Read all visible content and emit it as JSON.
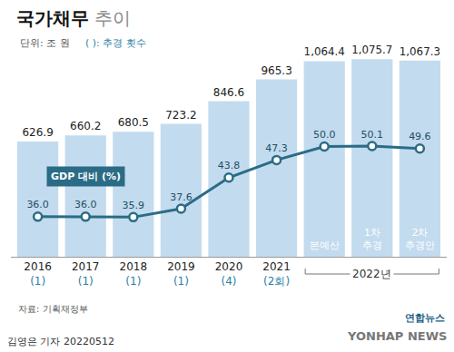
{
  "chart_data": {
    "type": "bar",
    "title": "국가채무 추이",
    "unit": "단위: 조 원",
    "note": "( ): 추경 횟수",
    "categories": [
      "2016",
      "2017",
      "2018",
      "2019",
      "2020",
      "2021",
      "본예산",
      "1차 추경",
      "2차 추경안"
    ],
    "revision_counts": [
      "(1)",
      "(1)",
      "(1)",
      "(1)",
      "(4)",
      "(2회)",
      null,
      null,
      null
    ],
    "group_label": "2022년",
    "series": [
      {
        "type": "bar",
        "color": "#c3dbee",
        "values": [
          626.9,
          660.2,
          680.5,
          723.2,
          846.6,
          965.3,
          1064.4,
          1075.7,
          1067.3
        ],
        "value_labels": [
          "626.9",
          "660.2",
          "680.5",
          "723.2",
          "846.6",
          "965.3",
          "1,064.4",
          "1,075.7",
          "1,067.3"
        ]
      },
      {
        "name": "GDP 대비 (%)",
        "type": "line",
        "axis": "y2",
        "color": "#2a6c86",
        "marker": "circle",
        "values": [
          36.0,
          36.0,
          35.9,
          37.6,
          43.8,
          47.3,
          50.0,
          50.1,
          49.6
        ],
        "value_labels": [
          "36.0",
          "36.0",
          "35.9",
          "37.6",
          "43.8",
          "47.3",
          "50.0",
          "50.1",
          "49.6"
        ]
      }
    ],
    "ylim": [
      0,
      1200
    ],
    "y2lim": [
      28,
      72
    ],
    "tick_labels": "x",
    "grid": false,
    "data_labels": true,
    "source": "자료: 기획재정부",
    "byline": "김영은 기자 20220512",
    "logo": "연합뉴스",
    "logo_en": "YONHAP NEWS"
  }
}
